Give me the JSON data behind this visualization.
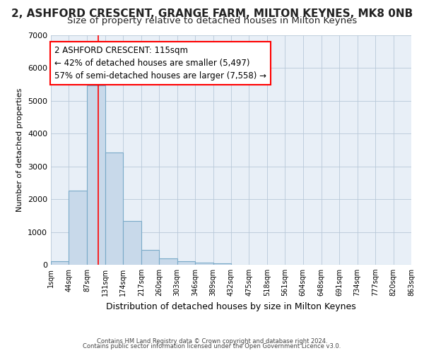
{
  "title": "2, ASHFORD CRESCENT, GRANGE FARM, MILTON KEYNES, MK8 0NB",
  "subtitle": "Size of property relative to detached houses in Milton Keynes",
  "xlabel": "Distribution of detached houses by size in Milton Keynes",
  "ylabel": "Number of detached properties",
  "bin_edges": [
    1,
    44,
    87,
    131,
    174,
    217,
    260,
    303,
    346,
    389,
    432,
    475,
    518,
    561,
    604,
    648,
    691,
    734,
    777,
    820,
    863
  ],
  "bar_heights": [
    100,
    2270,
    5480,
    3420,
    1330,
    450,
    185,
    105,
    60,
    50,
    0,
    0,
    0,
    0,
    0,
    0,
    0,
    0,
    0,
    0
  ],
  "bar_color": "#c8d9ea",
  "bar_edge_color": "#7aaac8",
  "bar_linewidth": 0.8,
  "grid_color": "#b8c8d8",
  "plot_bg_color": "#e8eff7",
  "background_color": "#ffffff",
  "property_line_x": 115,
  "property_line_color": "red",
  "annotation_line1": "2 ASHFORD CRESCENT: 115sqm",
  "annotation_line2": "← 42% of detached houses are smaller (5,497)",
  "annotation_line3": "57% of semi-detached houses are larger (7,558) →",
  "annotation_box_color": "white",
  "annotation_box_edge": "red",
  "ylim": [
    0,
    7000
  ],
  "tick_labels": [
    "1sqm",
    "44sqm",
    "87sqm",
    "131sqm",
    "174sqm",
    "217sqm",
    "260sqm",
    "303sqm",
    "346sqm",
    "389sqm",
    "432sqm",
    "475sqm",
    "518sqm",
    "561sqm",
    "604sqm",
    "648sqm",
    "691sqm",
    "734sqm",
    "777sqm",
    "820sqm",
    "863sqm"
  ],
  "footnote1": "Contains HM Land Registry data © Crown copyright and database right 2024.",
  "footnote2": "Contains public sector information licensed under the Open Government Licence v3.0.",
  "title_fontsize": 11,
  "subtitle_fontsize": 9.5,
  "xlabel_fontsize": 9,
  "ylabel_fontsize": 8,
  "tick_fontsize": 7,
  "footnote_fontsize": 6,
  "annotation_fontsize": 8.5
}
